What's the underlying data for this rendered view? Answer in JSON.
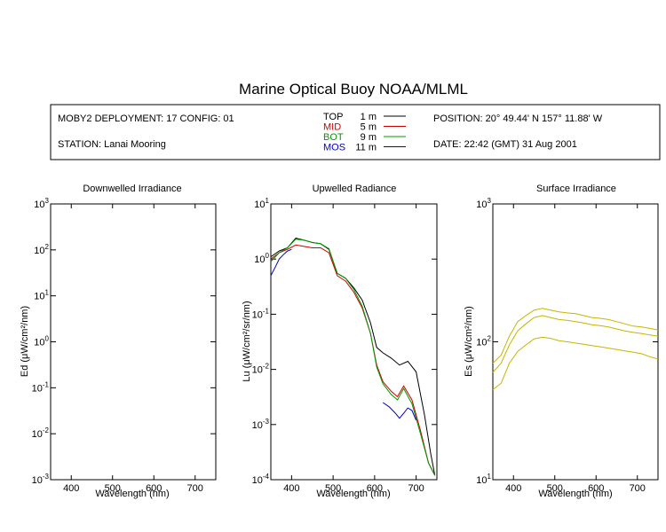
{
  "title": "Marine Optical Buoy NOAA/MLML",
  "info": {
    "deployment": "MOBY2 DEPLOYMENT: 17 CONFIG: 01",
    "station": "STATION: Lanai Mooring",
    "position": "POSITION: 20° 49.44' N   157° 11.88' W",
    "date": "DATE: 22:42 (GMT) 31 Aug 2001",
    "legend": [
      {
        "name": "TOP",
        "depth": "1  m",
        "color": "#000000"
      },
      {
        "name": "MID",
        "depth": "5  m",
        "color": "#cc0000"
      },
      {
        "name": "BOT",
        "depth": "9  m",
        "color": "#009900"
      },
      {
        "name": "MOS",
        "depth": "11  m",
        "color": "#0000cc"
      }
    ]
  },
  "colors": {
    "es_series": "#c8b400"
  },
  "panels": {
    "ed": {
      "title": "Downwelled Irradiance",
      "ylabel": "Ed  (μW/cm²/nm)",
      "xlabel": "Wavelength (nm)"
    },
    "lu": {
      "title": "Upwelled Radiance",
      "ylabel": "Lu  (μW/cm²/sr/nm)",
      "xlabel": "Wavelength (nm)"
    },
    "es": {
      "title": "Surface Irradiance",
      "ylabel": "Es  (μW/cm²/nm)",
      "xlabel": "Wavelength (nm)"
    }
  },
  "chart_data": [
    {
      "type": "line",
      "title": "Downwelled Irradiance",
      "xlabel": "Wavelength (nm)",
      "ylabel": "Ed  (μW/cm²/nm)",
      "y_scale": "log",
      "xlim": [
        350,
        750
      ],
      "ylim": [
        0.001,
        1000
      ],
      "x_ticks": [
        400,
        500,
        600,
        700
      ],
      "y_ticks": [
        "10^-3",
        "10^-2",
        "10^-1",
        "10^0",
        "10^1",
        "10^2",
        "10^3"
      ],
      "series": []
    },
    {
      "type": "line",
      "title": "Upwelled Radiance",
      "xlabel": "Wavelength (nm)",
      "ylabel": "Lu  (μW/cm²/sr/nm)",
      "y_scale": "log",
      "xlim": [
        350,
        750
      ],
      "ylim": [
        0.0001,
        10
      ],
      "x_ticks": [
        400,
        500,
        600,
        700
      ],
      "y_ticks": [
        "10^-4",
        "10^-3",
        "10^-2",
        "10^-1",
        "10^0",
        "10^1"
      ],
      "series": [
        {
          "name": "TOP",
          "color": "#000000",
          "x": [
            350,
            370,
            390,
            410,
            430,
            450,
            470,
            490,
            510,
            530,
            550,
            570,
            590,
            605,
            620,
            640,
            660,
            680,
            700,
            720,
            735,
            745
          ],
          "y": [
            1.1,
            1.4,
            1.6,
            2.4,
            2.2,
            2.0,
            1.9,
            1.5,
            0.55,
            0.45,
            0.3,
            0.18,
            0.07,
            0.025,
            0.02,
            0.016,
            0.012,
            0.014,
            0.009,
            0.0015,
            0.0003,
            0.00012
          ]
        },
        {
          "name": "MID",
          "color": "#cc0000",
          "x": [
            350,
            370,
            390,
            410,
            430,
            450,
            470,
            490,
            510,
            530,
            550,
            570,
            590,
            605,
            620,
            640,
            655,
            670,
            690,
            710,
            730,
            745
          ],
          "y": [
            1.0,
            1.3,
            1.5,
            1.8,
            1.7,
            1.6,
            1.6,
            1.3,
            0.5,
            0.4,
            0.25,
            0.13,
            0.045,
            0.012,
            0.006,
            0.004,
            0.0032,
            0.005,
            0.0028,
            0.0008,
            0.0002,
            0.00012
          ]
        },
        {
          "name": "BOT",
          "color": "#009900",
          "x": [
            350,
            370,
            390,
            410,
            430,
            450,
            470,
            490,
            510,
            530,
            550,
            570,
            590,
            605,
            620,
            640,
            655,
            670,
            690,
            710,
            730,
            745
          ],
          "y": [
            0.9,
            1.3,
            1.6,
            2.3,
            2.2,
            2.0,
            1.9,
            1.55,
            0.55,
            0.45,
            0.28,
            0.14,
            0.045,
            0.011,
            0.0055,
            0.0035,
            0.0028,
            0.0045,
            0.0024,
            0.0007,
            0.0002,
            0.00012
          ]
        },
        {
          "name": "MOS",
          "color": "#0000cc",
          "x": [
            350,
            360,
            370,
            380,
            390,
            400
          ],
          "y": [
            0.5,
            0.7,
            1.0,
            1.2,
            1.4,
            1.5
          ]
        },
        {
          "name": "MOS",
          "color": "#0000cc",
          "x": [
            620,
            635,
            650,
            660,
            670,
            680,
            690,
            700
          ],
          "y": [
            0.0025,
            0.0021,
            0.0016,
            0.0013,
            0.0016,
            0.002,
            0.0018,
            0.0012
          ]
        }
      ]
    },
    {
      "type": "line",
      "title": "Surface Irradiance",
      "xlabel": "Wavelength (nm)",
      "ylabel": "Es  (μW/cm²/nm)",
      "y_scale": "log",
      "xlim": [
        350,
        750
      ],
      "ylim": [
        10,
        1000
      ],
      "x_ticks": [
        400,
        500,
        600,
        700
      ],
      "y_ticks": [
        "10^1",
        "10^2",
        "10^3"
      ],
      "series": [
        {
          "color": "#c8b400",
          "x": [
            350,
            370,
            390,
            410,
            430,
            450,
            470,
            490,
            510,
            530,
            550,
            570,
            590,
            610,
            630,
            650,
            670,
            690,
            710,
            730,
            750
          ],
          "y": [
            70,
            80,
            110,
            140,
            155,
            170,
            175,
            170,
            165,
            162,
            160,
            155,
            150,
            148,
            145,
            140,
            135,
            130,
            128,
            125,
            122
          ]
        },
        {
          "color": "#c8b400",
          "x": [
            350,
            370,
            390,
            410,
            430,
            450,
            470,
            490,
            510,
            530,
            550,
            570,
            590,
            610,
            630,
            650,
            670,
            690,
            710,
            730,
            750
          ],
          "y": [
            60,
            70,
            95,
            120,
            135,
            150,
            155,
            150,
            145,
            143,
            140,
            137,
            133,
            131,
            128,
            124,
            120,
            117,
            115,
            112,
            110
          ]
        },
        {
          "color": "#c8b400",
          "x": [
            350,
            370,
            390,
            410,
            430,
            450,
            470,
            490,
            510,
            530,
            550,
            570,
            590,
            610,
            630,
            650,
            670,
            690,
            710,
            730,
            750
          ],
          "y": [
            45,
            50,
            70,
            85,
            95,
            105,
            108,
            106,
            102,
            100,
            98,
            96,
            94,
            92,
            90,
            88,
            86,
            84,
            82,
            78,
            75
          ]
        }
      ]
    }
  ]
}
